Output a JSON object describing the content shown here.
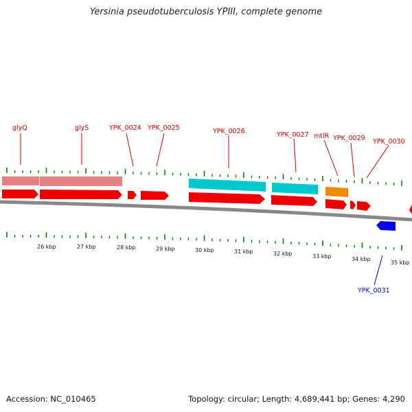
{
  "title": "Yersinia pseudotuberculosis YPIII, complete genome",
  "footer": {
    "accession": "Accession: NC_010465",
    "stats": "Topology: circular; Length: 4,689,441 bp; Genes: 4,290"
  },
  "colors": {
    "gene_red": "#ee0000",
    "rrna_pink": "#e88080",
    "cyan": "#00c8cc",
    "orange": "#ef8a00",
    "blue": "#0000ee",
    "tick_green": "#008000",
    "backbone": "#888888"
  },
  "gene_labels": [
    {
      "name": "glyQ",
      "color": "red"
    },
    {
      "name": "glyS",
      "color": "red"
    },
    {
      "name": "YPK_0024",
      "color": "red"
    },
    {
      "name": "YPK_0025",
      "color": "red"
    },
    {
      "name": "YPK_0026",
      "color": "red"
    },
    {
      "name": "YPK_0027",
      "color": "red"
    },
    {
      "name": "mtlR",
      "color": "red"
    },
    {
      "name": "YPK_0029",
      "color": "red"
    },
    {
      "name": "YPK_0030",
      "color": "red"
    },
    {
      "name": "YPK_0031",
      "color": "blue"
    }
  ],
  "kbp_labels": [
    "26 kbp",
    "27 kbp",
    "28 kbp",
    "29 kbp",
    "30 kbp",
    "31 kbp",
    "32 kbp",
    "33 kbp",
    "34 kbp",
    "35 kbp"
  ]
}
